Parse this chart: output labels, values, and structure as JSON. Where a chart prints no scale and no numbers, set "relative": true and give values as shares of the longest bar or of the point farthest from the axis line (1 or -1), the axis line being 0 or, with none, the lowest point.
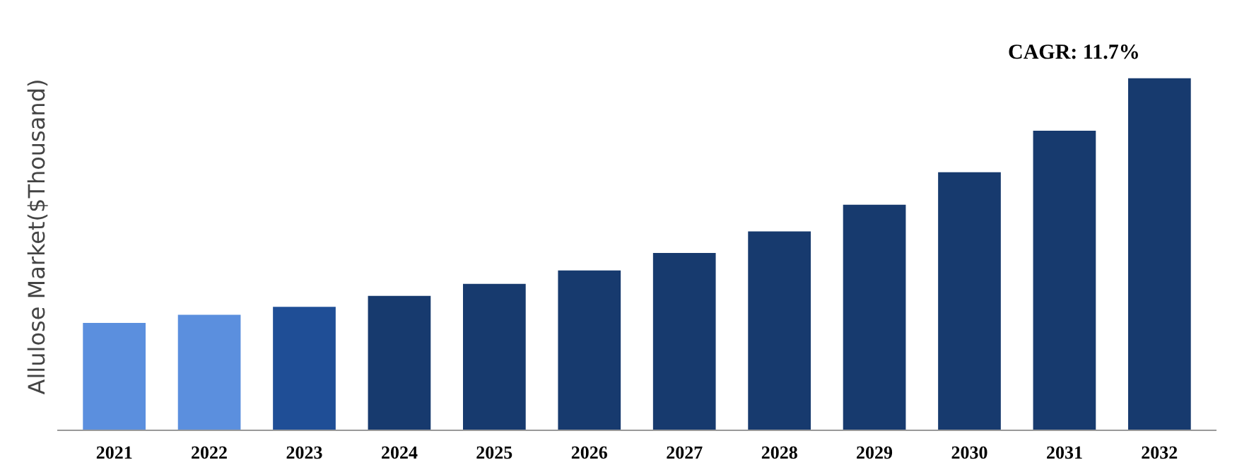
{
  "chart_data": {
    "type": "bar",
    "relative": true,
    "ylabel": "Allulose Market($Thousand)",
    "annotations": [
      "CAGR: 11.7%"
    ],
    "categories": [
      "2021",
      "2022",
      "2023",
      "2024",
      "2025",
      "2026",
      "2027",
      "2028",
      "2029",
      "2030",
      "2031",
      "2032"
    ],
    "values": [
      0.305,
      0.328,
      0.351,
      0.382,
      0.416,
      0.454,
      0.504,
      0.565,
      0.641,
      0.733,
      0.851,
      1
    ],
    "colors": [
      "#5b8fde",
      "#5b8fde",
      "#1f4e96",
      "#173a6e",
      "#173a6e",
      "#173a6e",
      "#173a6e",
      "#173a6e",
      "#173a6e",
      "#173a6e",
      "#173a6e",
      "#173a6e"
    ],
    "grid": false
  }
}
